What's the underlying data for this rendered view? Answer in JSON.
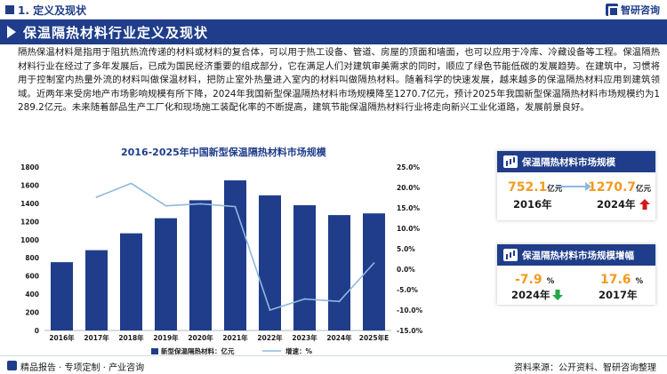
{
  "section_label": "1. 定义及现状",
  "logo_text": "智研咨询",
  "banner_title": "保温隔热材料行业定义及现状",
  "body_paragraph": "隔热保温材料是指用于阻抗热流传递的材料或材料的复合体，可以用于热工设备、管道、房屋的顶面和墙面，也可以应用于冷库、冷藏设备等工程。保温隔热材料行业在经过了多年发展后，已成为国民经济重要的组成部分，它在满足人们对建筑审美需求的同时，顺应了绿色节能低碳的发展趋势。在建筑中，习惯将用于控制室内热量外流的材料叫做保温材料，把防止室外热量进入室内的材料叫做隔热材料。随着科学的快速发展，越来越多的保温隔热材料应用到建筑领域。近两年来受房地产市场影响规模有所下降，2024年我国新型保温隔热材料市场规模降至1270.7亿元，预计2025年我国新型保温隔热材料市场规模约为1289.2亿元。未来随着部品生产工厂化和现场施工装配化率的不断提高，建筑节能保温隔热材料行业将走向新兴工业化道路，发展前景良好。",
  "chart_title": "2016-2025年中国新型保温隔热材料市场规模",
  "card1": {
    "title": "保温隔热材料市场规模",
    "left_value": "752.1",
    "left_unit": "亿元",
    "left_year": "2016年",
    "right_value": "1270.7",
    "right_unit": "亿元",
    "right_year": "2024年"
  },
  "card2": {
    "title": "保温隔热材料市场规模增幅",
    "left_value": "-7.9",
    "left_unit": "%",
    "left_year": "2024年",
    "right_value": "17.6",
    "right_unit": "%",
    "right_year": "2017年"
  },
  "footer": {
    "left": "精品报告 · 专项定制 · 产业咨询",
    "right": "资料来源：公开资料、智研咨询整理"
  },
  "colors": {
    "brand": "#1f3d8a",
    "bar": "#1f3d8a",
    "line": "#8fb8e0",
    "accent_orange": "#f39a1f",
    "up_red": "#d0191b",
    "down_green": "#22a84a"
  },
  "chart_data": {
    "type": "bar",
    "categories": [
      "2016年",
      "2017年",
      "2018年",
      "2019年",
      "2020年",
      "2021年",
      "2022年",
      "2023年",
      "2024年",
      "2025年E"
    ],
    "series": [
      {
        "name": "新型保温隔热材料：亿元",
        "type": "bar",
        "axis": "left",
        "values": [
          752.1,
          884.4,
          1070,
          1236,
          1434,
          1653,
          1488,
          1379,
          1270.7,
          1289.2
        ]
      },
      {
        "name": "增速：%",
        "type": "line",
        "axis": "right",
        "values": [
          null,
          17.6,
          21.0,
          15.5,
          16.0,
          15.3,
          -10.0,
          -7.3,
          -7.9,
          1.5
        ]
      }
    ],
    "y_left": {
      "ticks": [
        "0",
        "200",
        "400",
        "600",
        "800",
        "1000",
        "1200",
        "1400",
        "1600",
        "1800"
      ],
      "range": [
        0,
        1800
      ]
    },
    "y_right": {
      "ticks": [
        "-15.0%",
        "-10.0%",
        "-5.0%",
        "0.0%",
        "5.0%",
        "10.0%",
        "15.0%",
        "20.0%",
        "25.0%"
      ],
      "range": [
        -15,
        25
      ]
    },
    "legend_position": "bottom",
    "grid": false
  }
}
